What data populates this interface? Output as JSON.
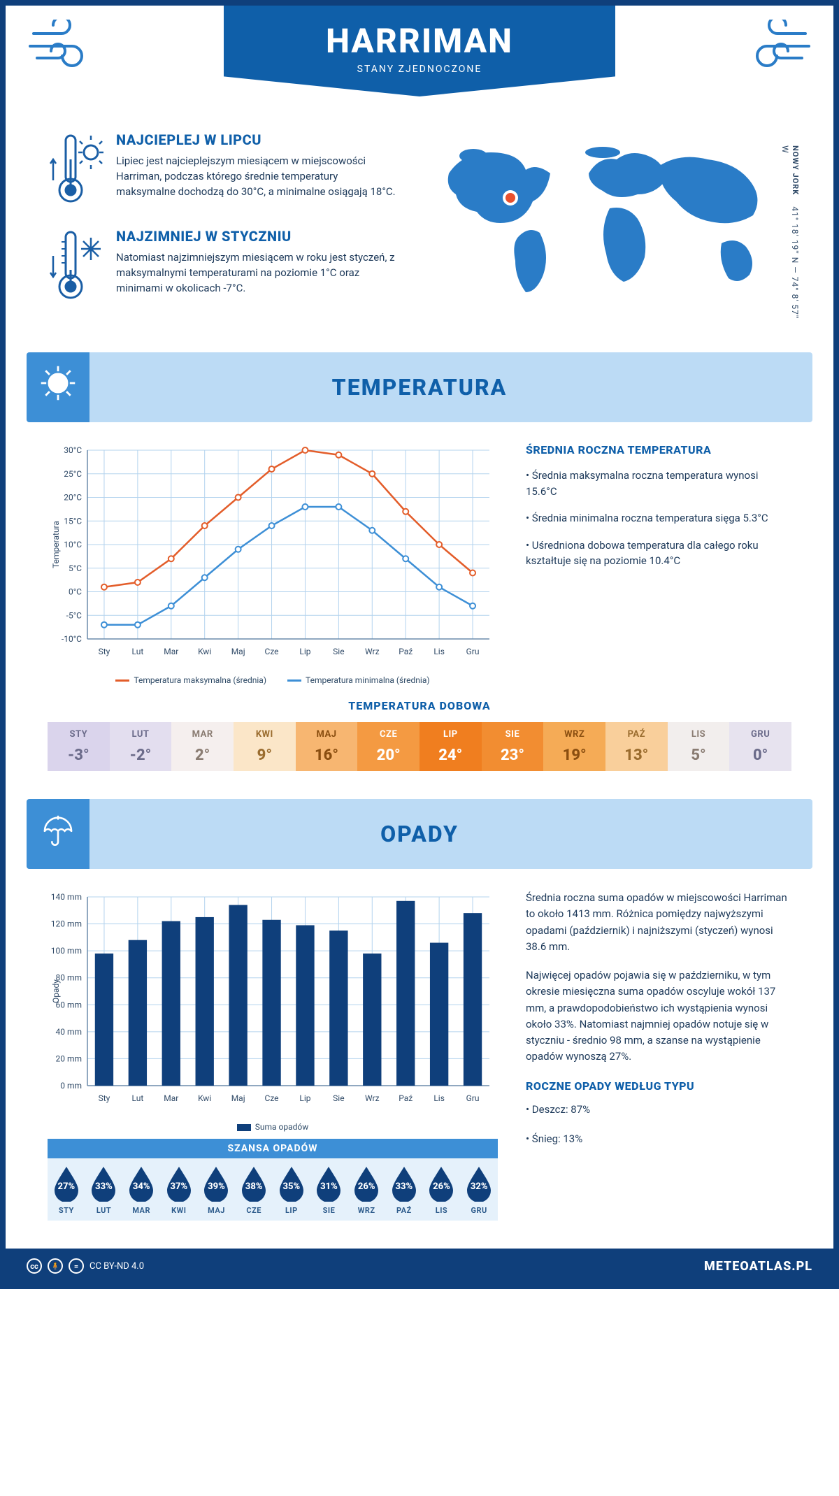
{
  "header": {
    "title": "HARRIMAN",
    "subtitle": "STANY ZJEDNOCZONE",
    "coords": "41° 18' 19'' N — 74° 8' 57'' W",
    "state": "NOWY JORK"
  },
  "facts": {
    "hot": {
      "title": "NAJCIEPLEJ W LIPCU",
      "text": "Lipiec jest najcieplejszym miesiącem w miejscowości Harriman, podczas którego średnie temperatury maksymalne dochodzą do 30°C, a minimalne osiągają 18°C."
    },
    "cold": {
      "title": "NAJZIMNIEJ W STYCZNIU",
      "text": "Natomiast najzimniejszym miesiącem w roku jest styczeń, z maksymalnymi temperaturami na poziomie 1°C oraz minimami w okolicach -7°C."
    }
  },
  "months": [
    "Sty",
    "Lut",
    "Mar",
    "Kwi",
    "Maj",
    "Cze",
    "Lip",
    "Sie",
    "Wrz",
    "Paź",
    "Lis",
    "Gru"
  ],
  "months_uc": [
    "STY",
    "LUT",
    "MAR",
    "KWI",
    "MAJ",
    "CZE",
    "LIP",
    "SIE",
    "WRZ",
    "PAŹ",
    "LIS",
    "GRU"
  ],
  "temperature": {
    "section_title": "TEMPERATURA",
    "yaxis_label": "Temperatura",
    "ylim": [
      -10,
      30
    ],
    "ytick_step": 5,
    "grid_color": "#b3d3ee",
    "max_series": {
      "label": "Temperatura maksymalna (średnia)",
      "color": "#e35d2a",
      "values": [
        1,
        2,
        7,
        14,
        20,
        26,
        30,
        29,
        25,
        17,
        10,
        4
      ]
    },
    "min_series": {
      "label": "Temperatura minimalna (średnia)",
      "color": "#3d8fd6",
      "values": [
        -7,
        -7,
        -3,
        3,
        9,
        14,
        18,
        18,
        13,
        7,
        1,
        -3
      ]
    },
    "stats": {
      "title": "ŚREDNIA ROCZNA TEMPERATURA",
      "b1": "• Średnia maksymalna roczna temperatura wynosi 15.6°C",
      "b2": "• Średnia minimalna roczna temperatura sięga 5.3°C",
      "b3": "• Uśredniona dobowa temperatura dla całego roku kształtuje się na poziomie 10.4°C"
    },
    "daily": {
      "title": "TEMPERATURA DOBOWA",
      "values": [
        "-3°",
        "-2°",
        "2°",
        "9°",
        "16°",
        "20°",
        "24°",
        "23°",
        "19°",
        "13°",
        "5°",
        "0°"
      ],
      "bg_colors": [
        "#dad4ec",
        "#e3deef",
        "#f5efee",
        "#fbe6c8",
        "#f7b671",
        "#f49a42",
        "#f07e1f",
        "#f28d31",
        "#f5ab56",
        "#f9cf9b",
        "#f2eeed",
        "#e7e3ef"
      ],
      "text_colors": [
        "#6b6b8a",
        "#6b6b8a",
        "#8a7c72",
        "#9a6c2e",
        "#8a4e10",
        "#fff",
        "#fff",
        "#fff",
        "#8a4e10",
        "#9a6c2e",
        "#8a7c72",
        "#6b6b8a"
      ]
    }
  },
  "precip": {
    "section_title": "OPADY",
    "yaxis_label": "Opady",
    "ylim": [
      0,
      140
    ],
    "ytick_step": 20,
    "bar_color": "#0f3f7b",
    "grid_color": "#b3d3ee",
    "values_mm": [
      98,
      108,
      122,
      125,
      134,
      123,
      119,
      115,
      98,
      137,
      106,
      128
    ],
    "legend": "Suma opadów",
    "para1": "Średnia roczna suma opadów w miejscowości Harriman to około 1413 mm. Różnica pomiędzy najwyższymi opadami (październik) i najniższymi (styczeń) wynosi 38.6 mm.",
    "para2": "Najwięcej opadów pojawia się w październiku, w tym okresie miesięczna suma opadów oscyluje wokół 137 mm, a prawdopodobieństwo ich wystąpienia wynosi około 33%. Natomiast najmniej opadów notuje się w styczniu - średnio 98 mm, a szanse na wystąpienie opadów wynoszą 27%.",
    "chance": {
      "title": "SZANSA OPADÓW",
      "values": [
        "27%",
        "33%",
        "34%",
        "37%",
        "39%",
        "38%",
        "35%",
        "31%",
        "26%",
        "33%",
        "26%",
        "32%"
      ],
      "drop_color": "#0f3f7b"
    },
    "bytype": {
      "title": "ROCZNE OPADY WEDŁUG TYPU",
      "rain": "• Deszcz: 87%",
      "snow": "• Śnieg: 13%"
    }
  },
  "footer": {
    "license": "CC BY-ND 4.0",
    "brand": "METEOATLAS.PL"
  },
  "palette": {
    "primary": "#0f5fa9",
    "dark": "#0f3f7b",
    "light": "#bcdbf5",
    "tab": "#3d8fd6"
  }
}
